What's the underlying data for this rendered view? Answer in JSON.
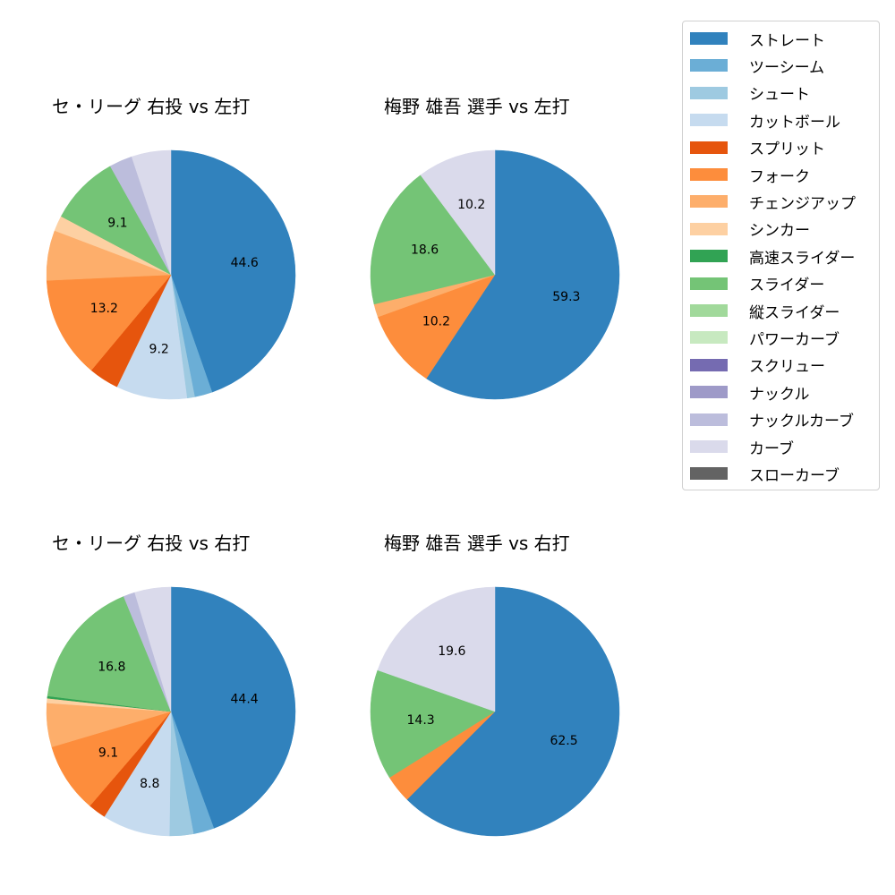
{
  "legend": {
    "items": [
      {
        "label": "ストレート",
        "color": "#3182bd"
      },
      {
        "label": "ツーシーム",
        "color": "#6baed6"
      },
      {
        "label": "シュート",
        "color": "#9ecae1"
      },
      {
        "label": "カットボール",
        "color": "#c6dbef"
      },
      {
        "label": "スプリット",
        "color": "#e6550d"
      },
      {
        "label": "フォーク",
        "color": "#fd8d3c"
      },
      {
        "label": "チェンジアップ",
        "color": "#fdae6b"
      },
      {
        "label": "シンカー",
        "color": "#fdd0a2"
      },
      {
        "label": "高速スライダー",
        "color": "#31a354"
      },
      {
        "label": "スライダー",
        "color": "#74c476"
      },
      {
        "label": "縦スライダー",
        "color": "#a1d99b"
      },
      {
        "label": "パワーカーブ",
        "color": "#c7e9c0"
      },
      {
        "label": "スクリュー",
        "color": "#756bb1"
      },
      {
        "label": "ナックル",
        "color": "#9e9ac8"
      },
      {
        "label": "ナックルカーブ",
        "color": "#bcbddc"
      },
      {
        "label": "カーブ",
        "color": "#dadaeb"
      },
      {
        "label": "スローカーブ",
        "color": "#636363"
      }
    ]
  },
  "chart_data": [
    {
      "type": "pie",
      "title": "セ・リーグ 右投 vs 左打",
      "categories": [
        "ストレート",
        "ツーシーム",
        "シュート",
        "カットボール",
        "スプリット",
        "フォーク",
        "チェンジアップ",
        "シンカー",
        "スライダー",
        "ナックルカーブ",
        "カーブ"
      ],
      "values": [
        44.6,
        2.3,
        1.0,
        9.2,
        3.9,
        13.2,
        6.5,
        2.0,
        9.1,
        3.0,
        5.1
      ],
      "labels_shown": [
        "44.6",
        "",
        "",
        "9.2",
        "",
        "13.2",
        "",
        "",
        "9.1",
        "",
        ""
      ],
      "startangle": 90,
      "direction": "clockwise"
    },
    {
      "type": "pie",
      "title": "梅野 雄吾 選手 vs 左打",
      "categories": [
        "ストレート",
        "フォーク",
        "チェンジアップ",
        "スライダー",
        "カーブ"
      ],
      "values": [
        59.3,
        10.2,
        1.7,
        18.6,
        10.2
      ],
      "labels_shown": [
        "59.3",
        "10.2",
        "",
        "18.6",
        "10.2"
      ],
      "startangle": 90,
      "direction": "clockwise"
    },
    {
      "type": "pie",
      "title": "セ・リーグ 右投 vs 右打",
      "categories": [
        "ストレート",
        "ツーシーム",
        "シュート",
        "カットボール",
        "スプリット",
        "フォーク",
        "チェンジアップ",
        "シンカー",
        "高速スライダー",
        "スライダー",
        "ナックルカーブ",
        "カーブ"
      ],
      "values": [
        44.4,
        2.7,
        3.1,
        8.8,
        2.3,
        9.1,
        5.7,
        0.6,
        0.3,
        16.8,
        1.5,
        4.7
      ],
      "labels_shown": [
        "44.4",
        "",
        "",
        "8.8",
        "",
        "9.1",
        "",
        "",
        "",
        "16.8",
        "",
        ""
      ],
      "startangle": 90,
      "direction": "clockwise"
    },
    {
      "type": "pie",
      "title": "梅野 雄吾 選手 vs 右打",
      "categories": [
        "ストレート",
        "フォーク",
        "スライダー",
        "カーブ"
      ],
      "values": [
        62.5,
        3.6,
        14.3,
        19.6
      ],
      "labels_shown": [
        "62.5",
        "",
        "14.3",
        "19.6"
      ],
      "startangle": 90,
      "direction": "clockwise"
    }
  ]
}
